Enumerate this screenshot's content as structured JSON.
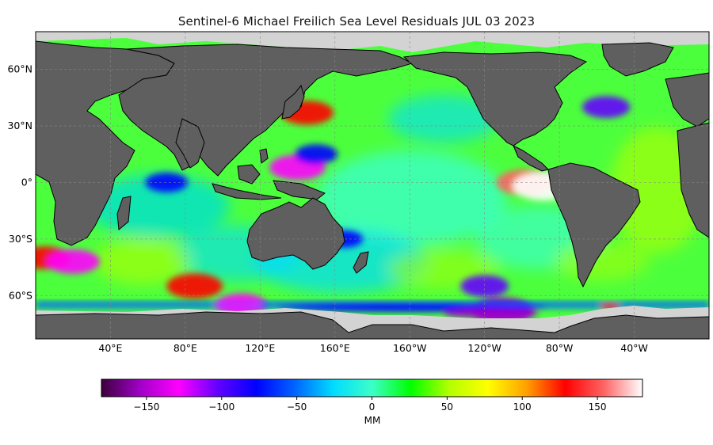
{
  "title": "Sentinel-6 Michael Freilich Sea Level Residuals JUL 03 2023",
  "map": {
    "projection": "equirectangular",
    "lon_center": 180,
    "lat_range": [
      -83,
      80
    ],
    "lat_ticks": [
      "60°N",
      "30°N",
      "0°",
      "30°S",
      "60°S"
    ],
    "lat_tick_values": [
      60,
      30,
      0,
      -30,
      -60
    ],
    "lon_ticks": [
      "40°E",
      "80°E",
      "120°E",
      "160°E",
      "160°W",
      "120°W",
      "80°W",
      "40°W"
    ],
    "lon_tick_values": [
      40,
      80,
      120,
      160,
      200,
      240,
      280,
      320
    ],
    "land_color": "#5f5f5f",
    "ice_color": "#d3d3d3",
    "gridlines": true
  },
  "anomalies": [
    {
      "lon": 262,
      "lat": 0,
      "value": 150,
      "desc": "El Nino warm pool"
    },
    {
      "lon": 272,
      "lat": -2,
      "value": 170
    },
    {
      "lon": 140,
      "lat": 8,
      "value": -140
    },
    {
      "lon": 150,
      "lat": 15,
      "value": -90
    },
    {
      "lon": 70,
      "lat": 0,
      "value": -90
    },
    {
      "lon": 85,
      "lat": -55,
      "value": 140
    },
    {
      "lon": 165,
      "lat": -30,
      "value": -70
    },
    {
      "lon": 240,
      "lat": -55,
      "value": -110
    },
    {
      "lon": 305,
      "lat": 40,
      "value": -110
    },
    {
      "lon": 145,
      "lat": 37,
      "value": 130
    },
    {
      "lon": 5,
      "lat": -40,
      "value": 120
    },
    {
      "lon": 20,
      "lat": -42,
      "value": -130
    },
    {
      "lon": 250,
      "lat": -68,
      "value": -150
    },
    {
      "lon": 110,
      "lat": -65,
      "value": -120
    }
  ],
  "colorbar": {
    "min": -180,
    "max": 180,
    "ticks": [
      "−150",
      "−100",
      "−50",
      "0",
      "50",
      "100",
      "150"
    ],
    "tick_values": [
      -150,
      -100,
      -50,
      0,
      50,
      100,
      150
    ],
    "label": "MM",
    "stops": [
      "#3c003c",
      "#a000c8",
      "#ff00ff",
      "#6400ff",
      "#0000ff",
      "#0064ff",
      "#00dcff",
      "#3cffc8",
      "#00ff00",
      "#b4ff00",
      "#ffff00",
      "#ffa000",
      "#ff0000",
      "#ff6464",
      "#ffffff"
    ]
  }
}
